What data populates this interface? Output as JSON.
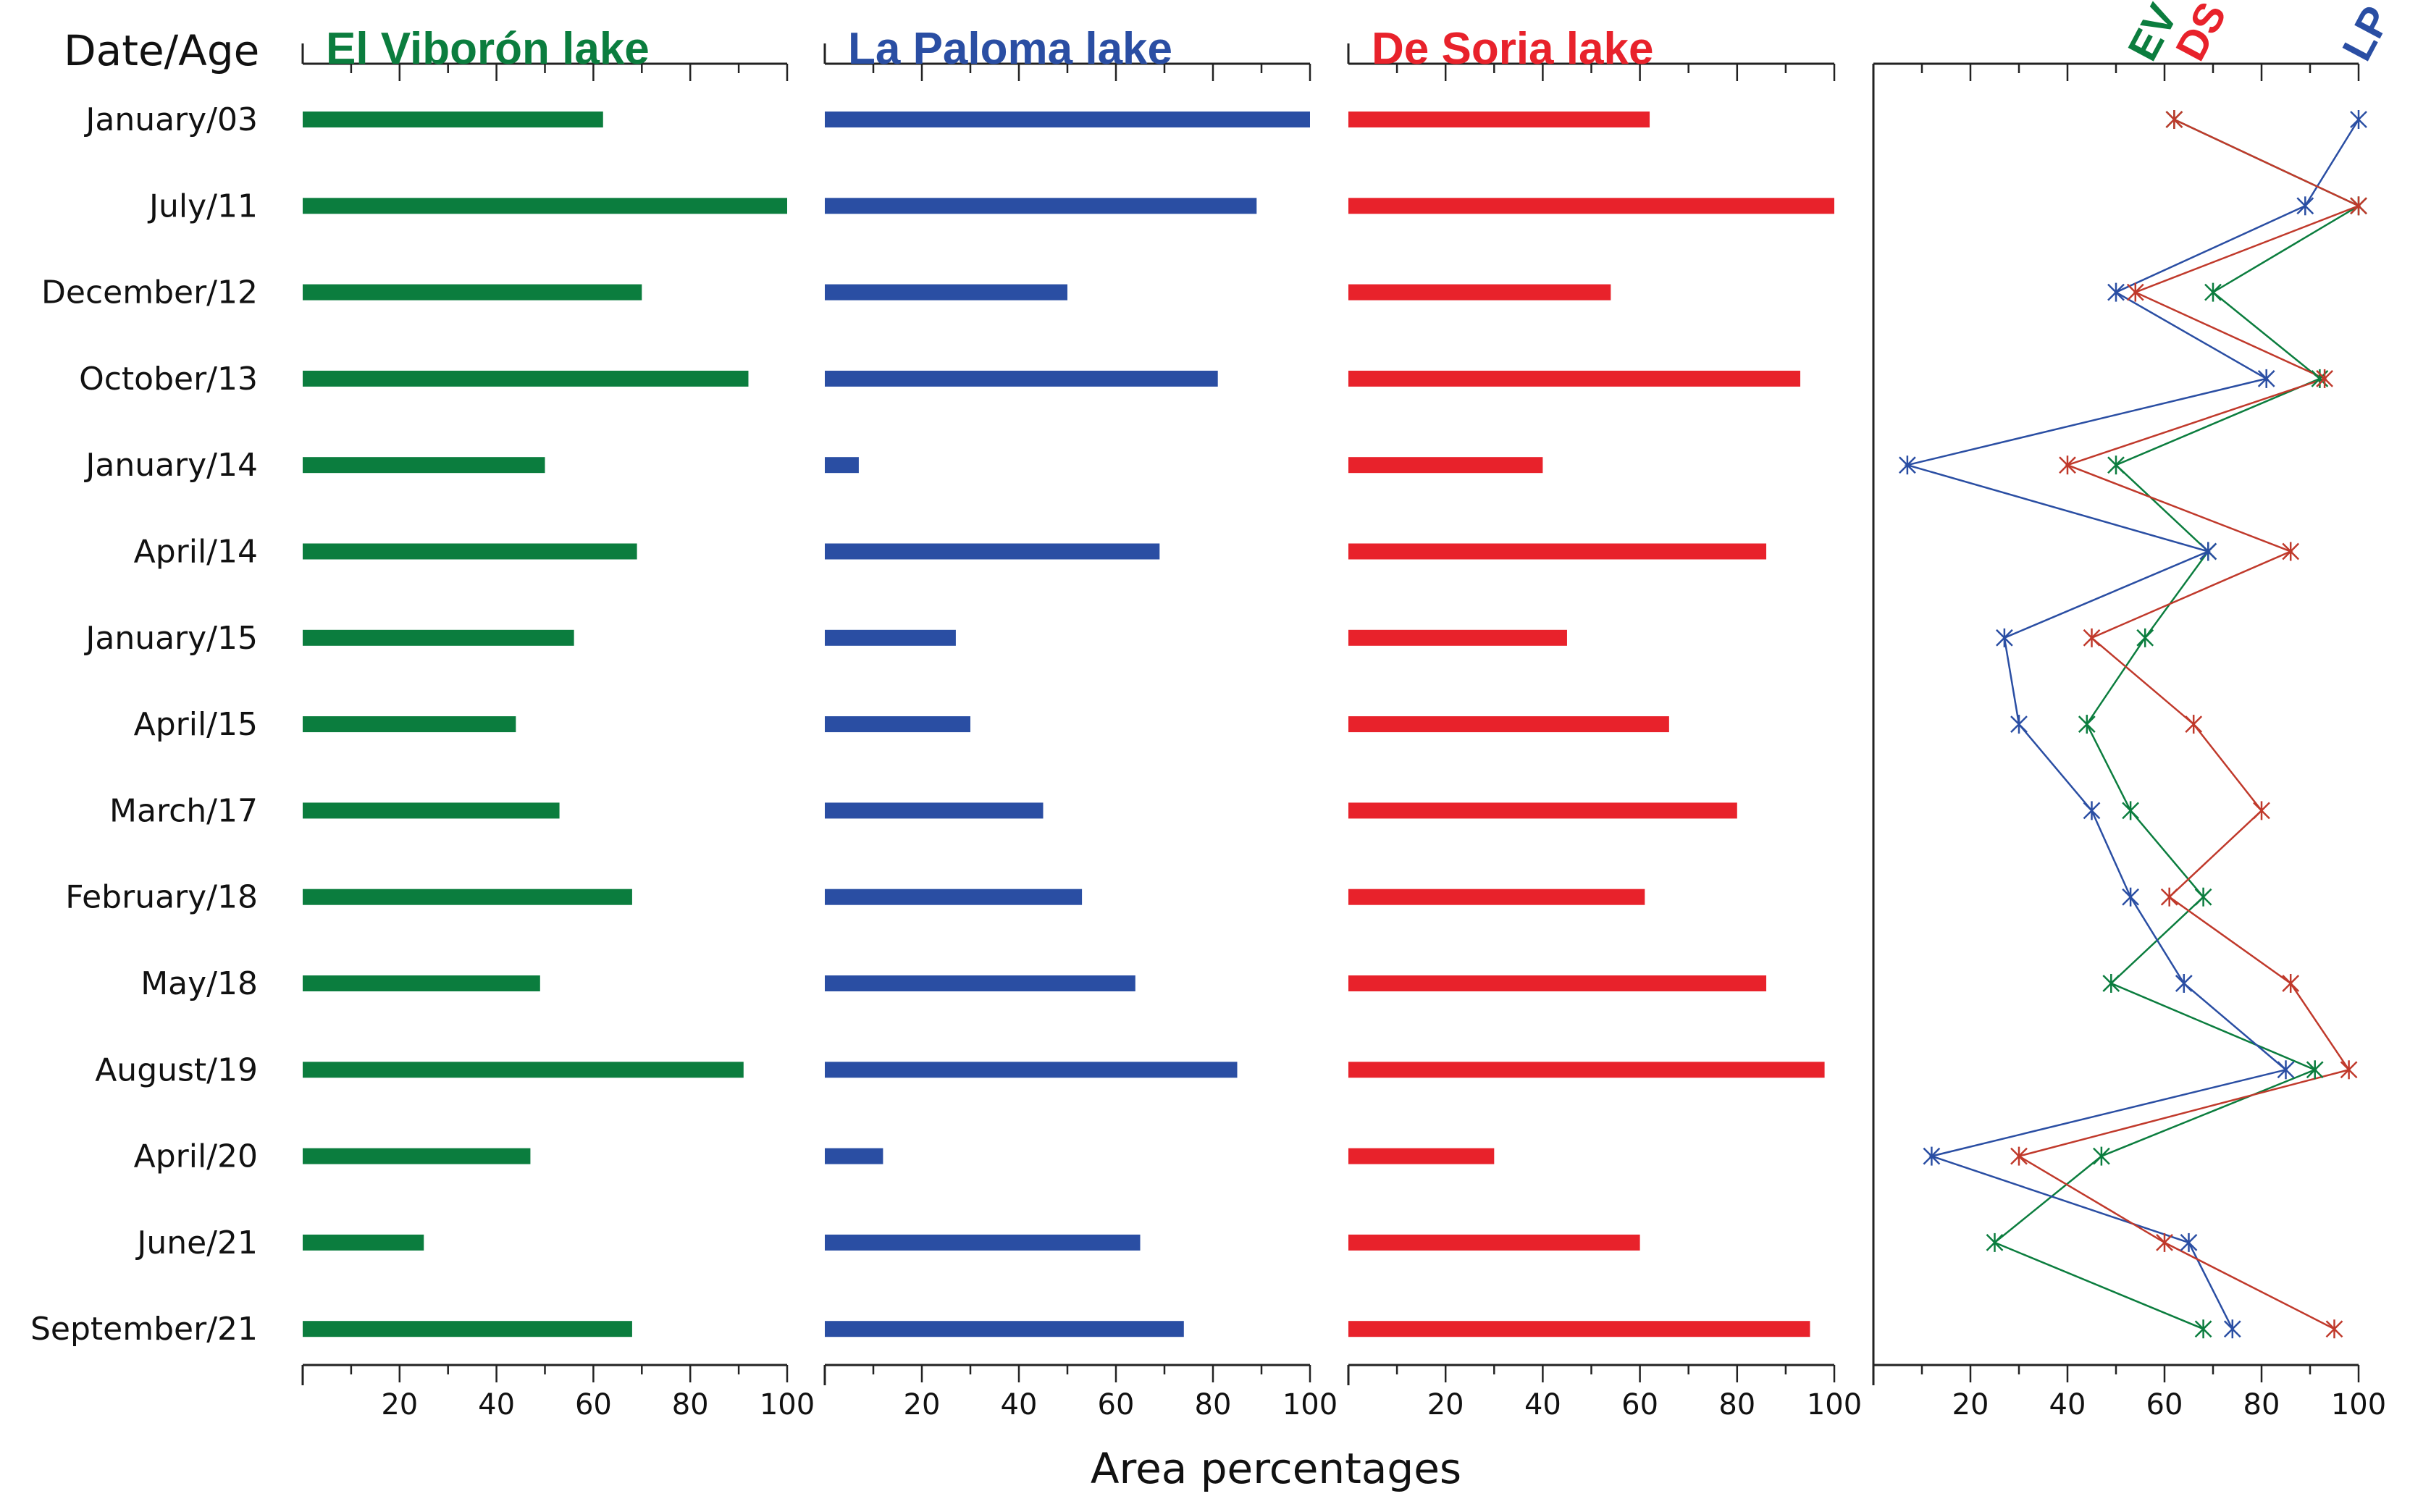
{
  "colors": {
    "ev": "#0b7d3e",
    "lp": "#2a4ea3",
    "ds": "#e8222b",
    "ds_line": "#c0392b"
  },
  "chart_data": {
    "type": "bar",
    "row_header": "Date/Age",
    "xlabel": "Area percentages",
    "xlim": [
      0,
      100
    ],
    "tick_labels": [
      "20",
      "40",
      "60",
      "80",
      "100"
    ],
    "categories": [
      "January/03",
      "July/11",
      "December/12",
      "October/13",
      "January/14",
      "April/14",
      "January/15",
      "April/15",
      "March/17",
      "February/18",
      "May/18",
      "August/19",
      "April/20",
      "June/21",
      "September/21"
    ],
    "series": [
      {
        "name": "El Viborón lake",
        "short": "EV",
        "values": [
          62,
          100,
          70,
          92,
          50,
          69,
          56,
          44,
          53,
          68,
          49,
          91,
          47,
          25,
          68
        ]
      },
      {
        "name": "La Paloma lake",
        "short": "LP",
        "values": [
          100,
          89,
          50,
          81,
          7,
          69,
          27,
          30,
          45,
          53,
          64,
          85,
          12,
          65,
          74
        ]
      },
      {
        "name": "De Soria lake",
        "short": "DS",
        "values": [
          62,
          100,
          54,
          93,
          40,
          86,
          45,
          66,
          80,
          61,
          86,
          98,
          30,
          60,
          95
        ]
      }
    ],
    "panels": [
      "bar",
      "bar",
      "bar",
      "line"
    ],
    "grid": false
  }
}
